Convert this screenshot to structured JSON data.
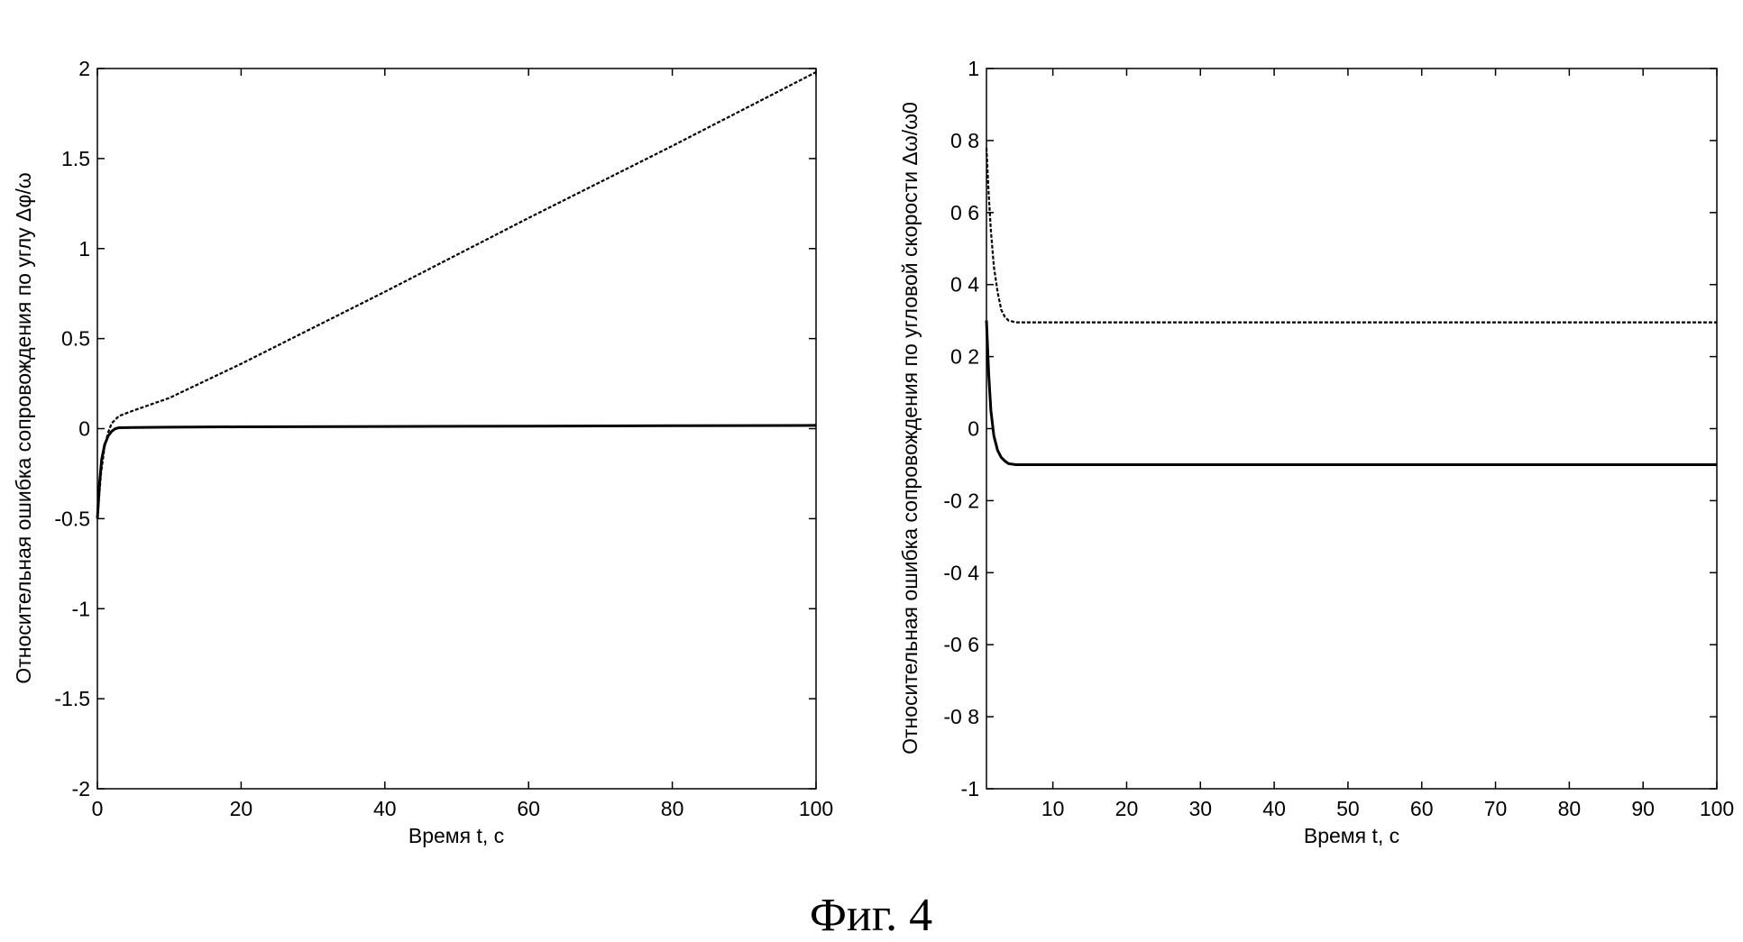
{
  "figure_caption": "Фиг. 4",
  "chart_data": [
    {
      "type": "line",
      "xlabel": "Время t, с",
      "ylabel": "Относительная ошибка сопровождения по углу Δφ/ω",
      "xlim": [
        0,
        100
      ],
      "ylim": [
        -2,
        2
      ],
      "xticks": [
        0,
        20,
        40,
        60,
        80,
        100
      ],
      "xtick_labels": [
        "0",
        "20",
        "40",
        "60",
        "80",
        "100"
      ],
      "yticks": [
        -2,
        -1.5,
        -1,
        -0.5,
        0,
        0.5,
        1,
        1.5,
        2
      ],
      "ytick_labels": [
        "-2",
        "-1.5",
        "-1",
        "-0.5",
        "0",
        "0.5",
        "1",
        "1.5",
        "2"
      ],
      "grid": false,
      "series": [
        {
          "style": "solid",
          "color": "#000000",
          "x": [
            0,
            0.3,
            0.6,
            1,
            1.5,
            2,
            2.5,
            3,
            5,
            10,
            20,
            40,
            60,
            80,
            100
          ],
          "y": [
            -0.5,
            -0.3,
            -0.17,
            -0.09,
            -0.04,
            -0.015,
            0,
            0.005,
            0.006,
            0.008,
            0.01,
            0.012,
            0.014,
            0.016,
            0.018
          ]
        },
        {
          "style": "dashed",
          "color": "#000000",
          "x": [
            0,
            0.5,
            1,
            1.5,
            2,
            3,
            5,
            10,
            20,
            40,
            60,
            80,
            100
          ],
          "y": [
            -0.5,
            -0.25,
            -0.1,
            -0.02,
            0.03,
            0.07,
            0.1,
            0.17,
            0.36,
            0.76,
            1.17,
            1.57,
            1.98
          ]
        }
      ]
    },
    {
      "type": "line",
      "xlabel": "Время t, с",
      "ylabel": "Относительная ошибка сопровождения по угловой скорости Δω/ω0",
      "xlim": [
        1,
        100
      ],
      "ylim": [
        -1,
        1
      ],
      "xticks": [
        10,
        20,
        30,
        40,
        50,
        60,
        70,
        80,
        90,
        100
      ],
      "xtick_labels": [
        "10",
        "20",
        "30",
        "40",
        "50",
        "60",
        "70",
        "80",
        "90",
        "100"
      ],
      "yticks": [
        -1,
        -0.8,
        -0.6,
        -0.4,
        -0.2,
        0,
        0.2,
        0.4,
        0.6,
        0.8,
        1
      ],
      "ytick_labels": [
        "-1",
        "-0 8",
        "-0 6",
        "-0 4",
        "-0 2",
        "0",
        "0 2",
        "0 4",
        "0 6",
        "0 8",
        "1"
      ],
      "grid": false,
      "series": [
        {
          "style": "solid",
          "color": "#000000",
          "x": [
            1,
            1.3,
            1.6,
            2,
            2.5,
            3,
            3.5,
            4,
            5,
            10,
            30,
            60,
            100
          ],
          "y": [
            0.3,
            0.15,
            0.05,
            -0.02,
            -0.06,
            -0.08,
            -0.09,
            -0.097,
            -0.1,
            -0.1,
            -0.1,
            -0.1,
            -0.1
          ]
        },
        {
          "style": "dashed",
          "color": "#000000",
          "x": [
            1,
            1.3,
            1.6,
            2,
            2.5,
            3,
            3.5,
            4,
            5,
            10,
            30,
            60,
            100
          ],
          "y": [
            0.78,
            0.65,
            0.55,
            0.45,
            0.38,
            0.33,
            0.31,
            0.3,
            0.295,
            0.295,
            0.295,
            0.295,
            0.295
          ]
        }
      ]
    }
  ]
}
